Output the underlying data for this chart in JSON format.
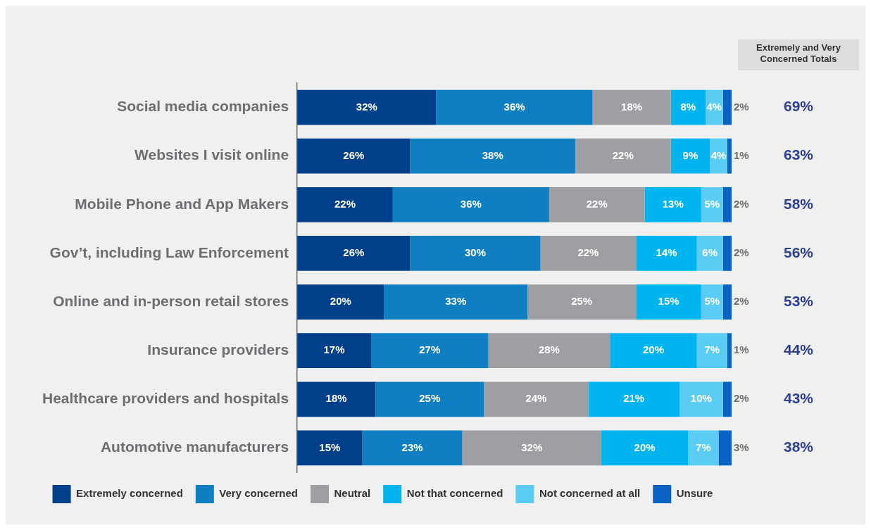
{
  "chart_data": {
    "type": "bar",
    "orientation": "horizontal",
    "stacked": true,
    "grid": false,
    "legend": "bottom",
    "tick_labels": "y",
    "categories": [
      "Social media companies",
      "Websites I visit online",
      "Mobile Phone and App Makers",
      "Gov’t, including Law Enforcement",
      "Online and in-person retail stores",
      "Insurance providers",
      "Healthcare providers and hospitals",
      "Automotive manufacturers"
    ],
    "series": [
      {
        "name": "Extremely concerned",
        "color": "#003f8a",
        "values": [
          32,
          26,
          22,
          26,
          20,
          17,
          18,
          15
        ],
        "value_labels": [
          "32%",
          "26%",
          "22%",
          "26%",
          "20%",
          "17%",
          "18%",
          "15%"
        ]
      },
      {
        "name": "Very concerned",
        "color": "#0f7fc2",
        "values": [
          36,
          38,
          36,
          30,
          33,
          27,
          25,
          23
        ],
        "value_labels": [
          "36%",
          "38%",
          "36%",
          "30%",
          "33%",
          "27%",
          "25%",
          "23%"
        ]
      },
      {
        "name": "Neutral",
        "color": "#9d9fa2",
        "values": [
          18,
          22,
          22,
          22,
          25,
          28,
          24,
          32
        ],
        "value_labels": [
          "18%",
          "22%",
          "22%",
          "22%",
          "25%",
          "28%",
          "24%",
          "32%"
        ]
      },
      {
        "name": "Not that concerned",
        "color": "#00b5ef",
        "values": [
          8,
          9,
          13,
          14,
          15,
          20,
          21,
          20
        ],
        "value_labels": [
          "8%",
          "9%",
          "13%",
          "14%",
          "15%",
          "20%",
          "21%",
          "20%"
        ]
      },
      {
        "name": "Not concerned at all",
        "color": "#5bcdf5",
        "values": [
          4,
          4,
          5,
          6,
          5,
          7,
          10,
          7
        ],
        "value_labels": [
          "4%",
          "4%",
          "5%",
          "6%",
          "5%",
          "7%",
          "10%",
          "7%"
        ]
      },
      {
        "name": "Unsure",
        "color": "#0a62c4",
        "values": [
          2,
          1,
          2,
          2,
          2,
          1,
          2,
          3
        ],
        "value_labels": [
          "2%",
          "1%",
          "2%",
          "2%",
          "2%",
          "1%",
          "2%",
          "3%"
        ]
      }
    ],
    "annotations": [
      "Extremely and Very Concerned Totals",
      "69%",
      "63%",
      "58%",
      "56%",
      "53%",
      "44%",
      "43%",
      "38%"
    ]
  }
}
